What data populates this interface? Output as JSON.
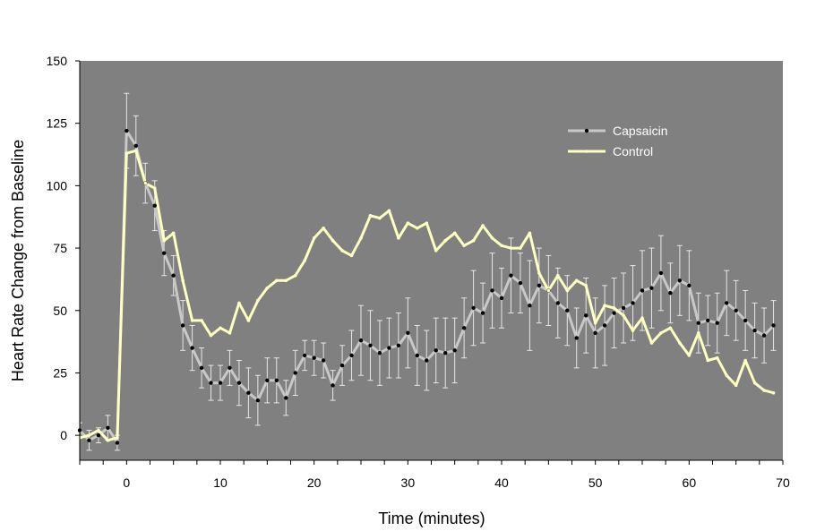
{
  "chart_data": {
    "type": "line",
    "xlabel": "Time (minutes)",
    "ylabel": "Heart Rate Change from Baseline",
    "xlim": [
      -5,
      70
    ],
    "ylim": [
      -10,
      150
    ],
    "xticks": [
      0,
      10,
      20,
      30,
      40,
      50,
      60,
      70
    ],
    "yticks": [
      0,
      25,
      50,
      75,
      100,
      125,
      150
    ],
    "grid": false,
    "legend_position": "top-right",
    "background_color": "#808080",
    "x": [
      -5,
      -4,
      -3,
      -2,
      -1,
      0,
      1,
      2,
      3,
      4,
      5,
      6,
      7,
      8,
      9,
      10,
      11,
      12,
      13,
      14,
      15,
      16,
      17,
      18,
      19,
      20,
      21,
      22,
      23,
      24,
      25,
      26,
      27,
      28,
      29,
      30,
      31,
      32,
      33,
      34,
      35,
      36,
      37,
      38,
      39,
      40,
      41,
      42,
      43,
      44,
      45,
      46,
      47,
      48,
      49,
      50,
      51,
      52,
      53,
      54,
      55,
      56,
      57,
      58,
      59,
      60,
      61,
      62,
      63,
      64,
      65,
      66,
      67,
      68,
      69
    ],
    "series": [
      {
        "name": "Capsaicin",
        "color": "#c8c8c8",
        "marker": "dot",
        "values": [
          2,
          -2,
          0,
          3,
          -3,
          122,
          116,
          101,
          92,
          73,
          64,
          44,
          35,
          27,
          21,
          21,
          27,
          21,
          17,
          14,
          22,
          22,
          15,
          25,
          32,
          31,
          30,
          20,
          28,
          32,
          38,
          36,
          33,
          35,
          36,
          41,
          32,
          30,
          34,
          33,
          34,
          43,
          51,
          49,
          58,
          55,
          64,
          61,
          52,
          60,
          58,
          53,
          50,
          39,
          48,
          41,
          44,
          49,
          51,
          53,
          58,
          59,
          65,
          57,
          62,
          60,
          45,
          46,
          45,
          53,
          50,
          46,
          42,
          40,
          44
        ],
        "errors": [
          3,
          4,
          3,
          5,
          3,
          15,
          12,
          8,
          10,
          9,
          8,
          10,
          9,
          8,
          7,
          7,
          7,
          9,
          10,
          10,
          9,
          9,
          7,
          9,
          6,
          7,
          7,
          6,
          8,
          10,
          14,
          14,
          13,
          12,
          13,
          14,
          12,
          12,
          13,
          14,
          13,
          12,
          15,
          12,
          15,
          12,
          15,
          12,
          18,
          15,
          14,
          14,
          14,
          12,
          15,
          14,
          16,
          14,
          14,
          15,
          16,
          16,
          15,
          12,
          14,
          14,
          12,
          10,
          12,
          13,
          12,
          12,
          11,
          11,
          10
        ]
      },
      {
        "name": "Control",
        "color": "#ffffc0",
        "marker": "dot",
        "values": [
          -1,
          0,
          2,
          -2,
          -1,
          113,
          114,
          101,
          99,
          78,
          81,
          62,
          46,
          46,
          40,
          43,
          41,
          53,
          46,
          54,
          59,
          62,
          62,
          64,
          70,
          79,
          83,
          78,
          74,
          72,
          79,
          88,
          87,
          90,
          79,
          85,
          83,
          85,
          74,
          78,
          81,
          76,
          78,
          84,
          79,
          76,
          75,
          75,
          81,
          65,
          58,
          64,
          58,
          62,
          60,
          45,
          52,
          51,
          48,
          42,
          47,
          37,
          41,
          43,
          37,
          32,
          41,
          30,
          31,
          24,
          20,
          30,
          21,
          18,
          17
        ]
      }
    ]
  }
}
